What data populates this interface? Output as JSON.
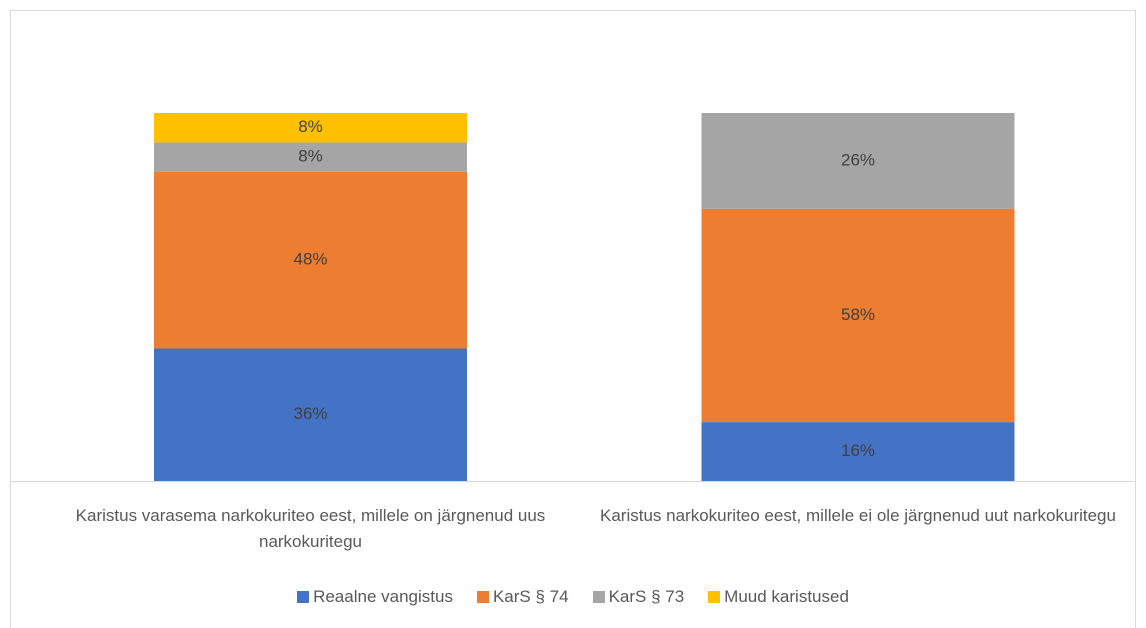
{
  "chart_data": {
    "type": "stacked-bar",
    "categories": [
      "Karistus varasema narkokuriteo eest, millele on järgnenud uus narkokuritegu",
      "Karistus narkokuriteo eest, millele ei ole järgnenud uut narkokuritegu"
    ],
    "series": [
      {
        "name": "Reaalne vangistus",
        "color": "#4472c4",
        "values": [
          36,
          16
        ],
        "value_labels": [
          "36%",
          "16%"
        ]
      },
      {
        "name": "KarS § 74",
        "color": "#ed7d31",
        "values": [
          48,
          58
        ],
        "value_labels": [
          "48%",
          "58%"
        ]
      },
      {
        "name": "KarS § 73",
        "color": "#a5a5a5",
        "values": [
          8,
          26
        ],
        "value_labels": [
          "8%",
          "26%"
        ]
      },
      {
        "name": "Muud karistused",
        "color": "#ffc000",
        "values": [
          8,
          null
        ],
        "value_labels": [
          "8%",
          null
        ]
      }
    ],
    "ylim": [
      0,
      100
    ]
  }
}
